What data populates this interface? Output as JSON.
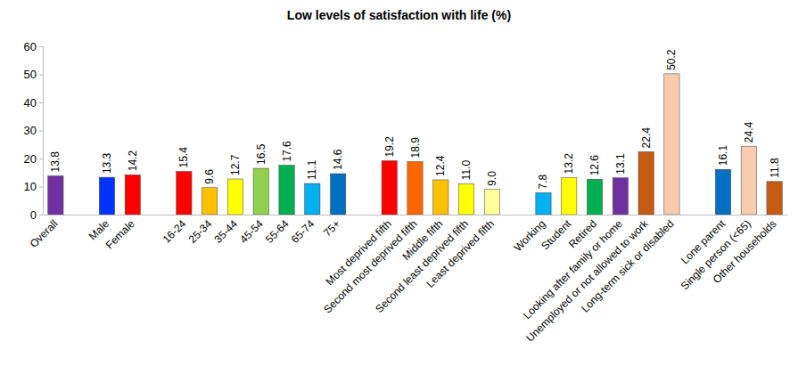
{
  "chart_data": {
    "type": "bar",
    "title": "Low levels of satisfaction with life (%)",
    "categories": [
      "Overall",
      null,
      "Male",
      "Female",
      null,
      "16-24",
      "25-34",
      "35-44",
      "45-54",
      "55-64",
      "65-74",
      "75+",
      null,
      "Most deprived fifth",
      "Second most deprived fifth",
      "Middle fifth",
      "Second least deprived fifth",
      "Least deprived fifth",
      null,
      "Working",
      "Student",
      "Retired",
      "Looking after family or home",
      "Unemployed or not allowed to work",
      "Long-term sick or disabled",
      null,
      "Lone parent",
      "Single person (<65)",
      "Other households"
    ],
    "values": [
      13.8,
      null,
      13.3,
      14.2,
      null,
      15.4,
      9.6,
      12.7,
      16.5,
      17.6,
      11.1,
      14.6,
      null,
      19.2,
      18.9,
      12.4,
      11.0,
      9.0,
      null,
      7.8,
      13.2,
      12.6,
      13.1,
      22.4,
      50.2,
      null,
      16.1,
      24.4,
      11.8
    ],
    "value_labels": [
      "13.8",
      null,
      "13.3",
      "14.2",
      null,
      "15.4",
      "9.6",
      "12.7",
      "16.5",
      "17.6",
      "11.1",
      "14.6",
      null,
      "19.2",
      "18.9",
      "12.4",
      "11.0",
      "9.0",
      null,
      "7.8",
      "13.2",
      "12.6",
      "13.1",
      "22.4",
      "50.2",
      null,
      "16.1",
      "24.4",
      "11.8"
    ],
    "colors": [
      "#7030a0",
      null,
      "#0033ff",
      "#ff0000",
      null,
      "#ff0000",
      "#ffc000",
      "#ffff00",
      "#92d050",
      "#00b050",
      "#00b0f0",
      "#0070c0",
      null,
      "#ff0000",
      "#ff6600",
      "#ffc000",
      "#ffff00",
      "#ffff99",
      null,
      "#00b0f0",
      "#ffff00",
      "#00b050",
      "#7030a0",
      "#c55a11",
      "#f8cbad",
      null,
      "#0070c0",
      "#f8cbad",
      "#c55a11"
    ],
    "ylim": [
      0,
      60
    ],
    "yticks": [
      0,
      10,
      20,
      30,
      40,
      50,
      60
    ],
    "grid": false,
    "data_labels": true
  }
}
